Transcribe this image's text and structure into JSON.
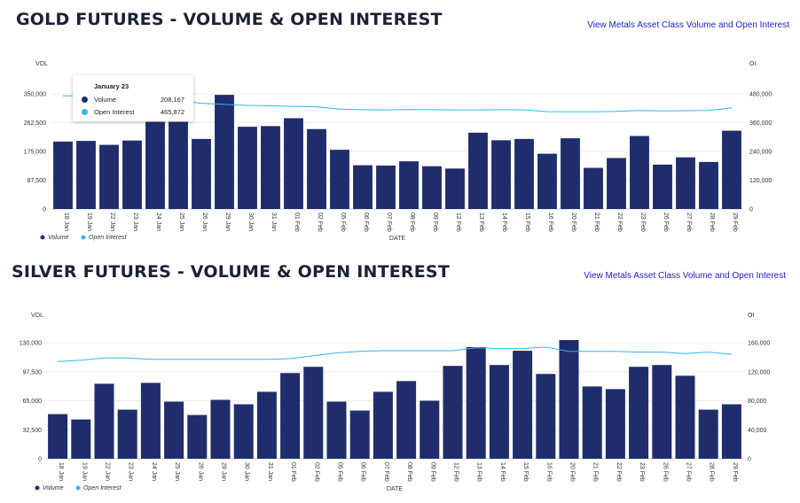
{
  "colors": {
    "volume": "#1f2d6c",
    "open_interest": "#35b5e5",
    "title": "#1b2236",
    "link": "#1d1fd6"
  },
  "chart_data": [
    {
      "type": "bar",
      "title": "GOLD FUTURES - VOLUME & OPEN INTEREST",
      "link": "View Metals Asset Class Volume and Open Interest",
      "xlabel": "DATE",
      "ylabel_left": "VOL",
      "ylabel_right": "OI",
      "categories": [
        "18 Jan",
        "19 Jan",
        "22 Jan",
        "23 Jan",
        "24 Jan",
        "25 Jan",
        "26 Jan",
        "29 Jan",
        "30 Jan",
        "31 Jan",
        "01 Feb",
        "02 Feb",
        "05 Feb",
        "06 Feb",
        "07 Feb",
        "08 Feb",
        "09 Feb",
        "12 Feb",
        "13 Feb",
        "14 Feb",
        "15 Feb",
        "16 Feb",
        "20 Feb",
        "21 Feb",
        "22 Feb",
        "23 Feb",
        "26 Feb",
        "27 Feb",
        "28 Feb",
        "29 Feb"
      ],
      "yticks_left": [
        "0",
        "87,500",
        "175,000",
        "262,500",
        "350,000"
      ],
      "yticks_right": [
        "0",
        "120,000",
        "240,000",
        "360,000",
        "480,000"
      ],
      "ylim_left": [
        0,
        350000
      ],
      "ylim_right": [
        0,
        480000
      ],
      "grid": true,
      "legend": "bottom-left",
      "series": [
        {
          "name": "Volume",
          "axis": "left",
          "kind": "bar",
          "values": [
            205000,
            207000,
            195000,
            208167,
            265000,
            265000,
            213000,
            347000,
            250000,
            252000,
            276000,
            243000,
            180000,
            133000,
            132000,
            145000,
            130000,
            123000,
            232000,
            209000,
            213000,
            168000,
            215000,
            125000,
            155000,
            222000,
            135000,
            157000,
            143000,
            238000
          ]
        },
        {
          "name": "Open Interest",
          "axis": "right",
          "kind": "line",
          "values": [
            472000,
            471000,
            469000,
            465872,
            460000,
            452000,
            441000,
            436000,
            432000,
            430000,
            428000,
            426000,
            416000,
            414000,
            413000,
            415000,
            414000,
            413000,
            413000,
            414000,
            413000,
            406000,
            405000,
            405000,
            407000,
            411000,
            409000,
            410000,
            411000,
            422000
          ]
        }
      ],
      "tooltip": {
        "date": "January 23",
        "volume_label": "Volume",
        "volume_value": "208,167",
        "oi_label": "Open Interest",
        "oi_value": "465,872"
      }
    },
    {
      "type": "bar",
      "title": "SILVER FUTURES - VOLUME & OPEN INTEREST",
      "link": "View Metals Asset Class Volume and Open Interest",
      "xlabel": "DATE",
      "ylabel_left": "VOL",
      "ylabel_right": "OI",
      "categories": [
        "18 Jan",
        "19 Jan",
        "22 Jan",
        "23 Jan",
        "24 Jan",
        "25 Jan",
        "26 Jan",
        "29 Jan",
        "30 Jan",
        "31 Jan",
        "01 Feb",
        "02 Feb",
        "05 Feb",
        "06 Feb",
        "07 Feb",
        "08 Feb",
        "09 Feb",
        "12 Feb",
        "13 Feb",
        "14 Feb",
        "15 Feb",
        "16 Feb",
        "20 Feb",
        "21 Feb",
        "22 Feb",
        "23 Feb",
        "26 Feb",
        "27 Feb",
        "28 Feb",
        "29 Feb"
      ],
      "yticks_left": [
        "0",
        "32,500",
        "65,000",
        "97,500",
        "130,000"
      ],
      "yticks_right": [
        "0",
        "40,000",
        "80,000",
        "120,000",
        "160,000"
      ],
      "ylim_left": [
        0,
        130000
      ],
      "ylim_right": [
        0,
        160000
      ],
      "grid": true,
      "legend": "bottom-left",
      "series": [
        {
          "name": "Volume",
          "axis": "left",
          "kind": "bar",
          "values": [
            50000,
            44000,
            84000,
            55000,
            85000,
            64000,
            49000,
            66000,
            61000,
            75000,
            96000,
            103000,
            64000,
            54000,
            75000,
            87000,
            65000,
            104000,
            125000,
            105000,
            121000,
            95000,
            133000,
            81000,
            78000,
            103000,
            105000,
            93000,
            55000,
            61000
          ]
        },
        {
          "name": "Open Interest",
          "axis": "right",
          "kind": "line",
          "values": [
            134000,
            136000,
            139000,
            139000,
            137000,
            137000,
            137000,
            137000,
            137000,
            137000,
            138000,
            142000,
            146000,
            148000,
            149000,
            149000,
            149000,
            149000,
            153000,
            152000,
            152000,
            154000,
            148000,
            148000,
            148000,
            147000,
            147000,
            145000,
            147000,
            144000
          ]
        }
      ]
    }
  ],
  "legend": {
    "volume": "Volume",
    "open_interest": "Open Interest"
  }
}
